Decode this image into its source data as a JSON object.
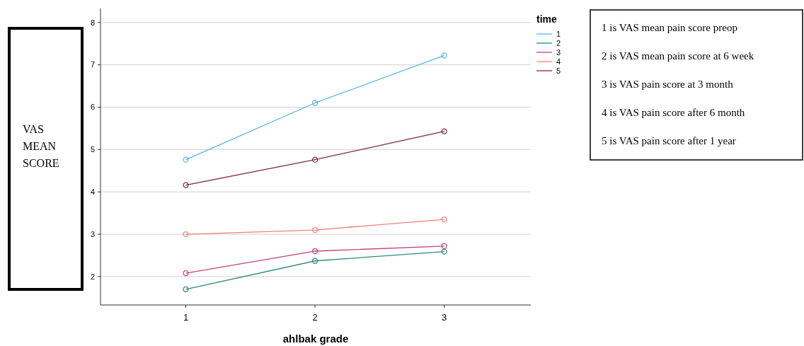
{
  "chart_data": {
    "type": "line",
    "xlabel": "ahlbak grade",
    "ylabel": "VAS MEAN SCORE",
    "legend_title": "time",
    "x": [
      1,
      2,
      3
    ],
    "xlim": [
      0.34,
      3.67
    ],
    "xticks": [
      1,
      2,
      3
    ],
    "ylim": [
      1.33,
      8.33
    ],
    "yticks": [
      2,
      3,
      4,
      5,
      6,
      7,
      8
    ],
    "series": [
      {
        "name": "1",
        "color": "#5ab4e8",
        "values": [
          4.76,
          6.1,
          7.22
        ]
      },
      {
        "name": "2",
        "color": "#2e8a80",
        "values": [
          1.7,
          2.37,
          2.59
        ]
      },
      {
        "name": "3",
        "color": "#c0457a",
        "values": [
          2.08,
          2.6,
          2.72
        ]
      },
      {
        "name": "4",
        "color": "#f08080",
        "values": [
          3.0,
          3.1,
          3.35
        ]
      },
      {
        "name": "5",
        "color": "#7a2a3a",
        "values": [
          4.16,
          4.76,
          5.43
        ]
      }
    ],
    "grid": "y",
    "legend": "right",
    "marker": "circle",
    "line_style": "solid",
    "annotations": [
      "1 is VAS mean pain score preop",
      "2 is VAS mean pain score at 6 week",
      "3 is VAS pain score at 3 month",
      "4 is VAS pain score after 6 month",
      "5 is VAS pain score after 1 year"
    ]
  }
}
